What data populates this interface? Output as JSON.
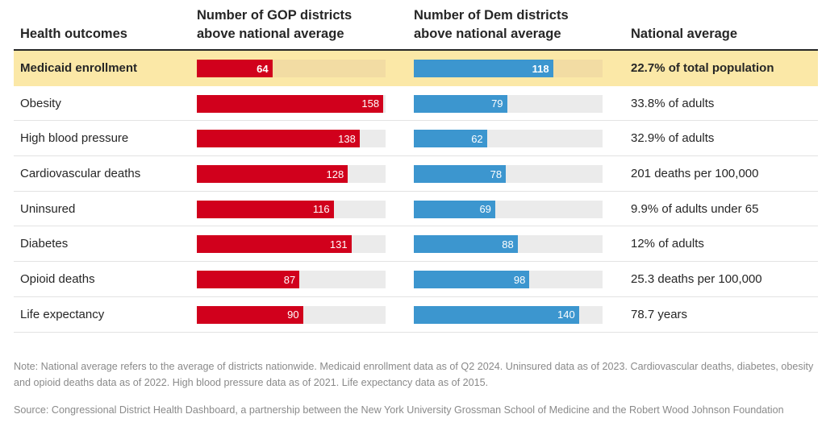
{
  "header": {
    "outcome": "Health outcomes",
    "gop": "Number of GOP districts above national average",
    "dem": "Number of Dem districts above national average",
    "avg": "National average"
  },
  "colors": {
    "gop": "#d1001c",
    "dem": "#3c96cf",
    "highlight": "#fbe8a7",
    "track": "#ebebeb"
  },
  "chart_data": {
    "type": "bar",
    "xlim": [
      0,
      160
    ],
    "categories": [
      "Medicaid enrollment",
      "Obesity",
      "High blood pressure",
      "Cardiovascular deaths",
      "Uninsured",
      "Diabetes",
      "Opioid deaths",
      "Life expectancy"
    ],
    "highlighted_category": "Medicaid enrollment",
    "series": [
      {
        "name": "Number of GOP districts above national average",
        "values": [
          64,
          158,
          138,
          128,
          116,
          131,
          87,
          90
        ]
      },
      {
        "name": "Number of Dem districts above national average",
        "values": [
          118,
          79,
          62,
          78,
          69,
          88,
          98,
          140
        ]
      }
    ],
    "national_average": [
      "22.7% of total population",
      "33.8% of adults",
      "32.9% of adults",
      "201 deaths per 100,000",
      "9.9% of adults under 65",
      "12% of adults",
      "25.3 deaths per 100,000",
      "78.7 years"
    ]
  },
  "note": "Note: National average refers to the average of districts nationwide. Medicaid enrollment data as of Q2 2024. Uninsured data as of 2023. Cardiovascular deaths, diabetes, obesity and opioid deaths data as of 2022. High blood pressure data as of 2021. Life expectancy data as of 2015.",
  "source": "Source: Congressional District Health Dashboard, a partnership between the New York University Grossman School of Medicine and the Robert Wood Johnson Foundation"
}
